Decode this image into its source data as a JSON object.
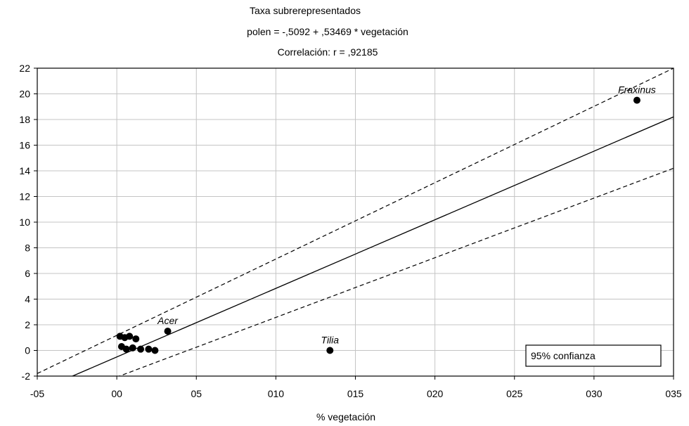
{
  "chart_data": {
    "type": "scatter",
    "title_lines": [
      "Taxa subrerepresentados",
      "polen  = -,5092 + ,53469 * vegetación",
      "Correlación: r = ,92185"
    ],
    "xlabel": "% vegetación",
    "ylabel": "",
    "xlim": [
      -5,
      35
    ],
    "ylim": [
      -2,
      22
    ],
    "x_ticks": [
      -5,
      0,
      5,
      10,
      15,
      20,
      25,
      30,
      35
    ],
    "x_tick_labels": [
      "-05",
      "00",
      "05",
      "010",
      "015",
      "020",
      "025",
      "030",
      "035"
    ],
    "y_ticks": [
      -2,
      0,
      2,
      4,
      6,
      8,
      10,
      12,
      14,
      16,
      18,
      20,
      22
    ],
    "y_tick_labels": [
      "-2",
      "0",
      "2",
      "4",
      "6",
      "8",
      "10",
      "12",
      "14",
      "16",
      "18",
      "20",
      "22"
    ],
    "grid": true,
    "regression": {
      "intercept": -0.5092,
      "slope": 0.53469
    },
    "confidence_bands": {
      "upper": [
        [
          -5,
          -1.8
        ],
        [
          35,
          22
        ]
      ],
      "lower": [
        [
          -5,
          -4.4
        ],
        [
          35,
          14.2
        ]
      ]
    },
    "points": [
      {
        "x": 32.7,
        "y": 19.5,
        "label": "Fraxinus"
      },
      {
        "x": 13.4,
        "y": 0.0,
        "label": "Tilia"
      },
      {
        "x": 3.2,
        "y": 1.5,
        "label": "Acer"
      },
      {
        "x": 0.2,
        "y": 1.1,
        "label": ""
      },
      {
        "x": 0.5,
        "y": 1.0,
        "label": ""
      },
      {
        "x": 0.8,
        "y": 1.1,
        "label": ""
      },
      {
        "x": 1.2,
        "y": 0.9,
        "label": ""
      },
      {
        "x": 0.3,
        "y": 0.3,
        "label": ""
      },
      {
        "x": 0.6,
        "y": 0.1,
        "label": ""
      },
      {
        "x": 1.0,
        "y": 0.2,
        "label": ""
      },
      {
        "x": 1.5,
        "y": 0.1,
        "label": ""
      },
      {
        "x": 2.0,
        "y": 0.1,
        "label": ""
      },
      {
        "x": 2.4,
        "y": 0.0,
        "label": ""
      }
    ],
    "legend": {
      "text": "95% confianza",
      "placement": "bottom-right"
    }
  }
}
